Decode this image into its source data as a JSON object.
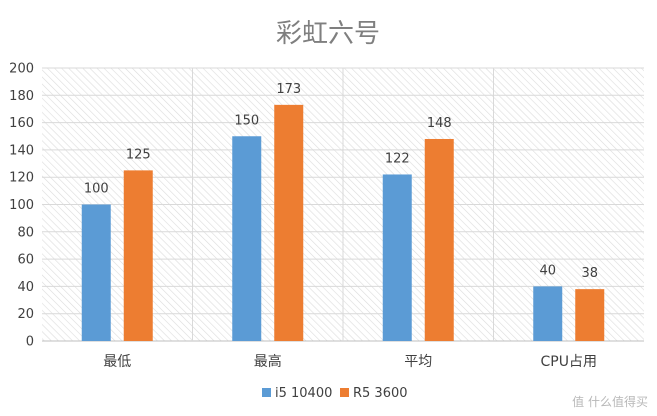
{
  "watermark": "值 什么值得买",
  "chart_data": {
    "type": "bar",
    "title": "彩虹六号",
    "categories": [
      "最低",
      "最高",
      "平均",
      "CPU占用"
    ],
    "series": [
      {
        "name": "i5 10400",
        "color": "#5b9bd5",
        "values": [
          100,
          150,
          122,
          40
        ]
      },
      {
        "name": "R5 3600",
        "color": "#ed7d31",
        "values": [
          125,
          173,
          148,
          38
        ]
      }
    ],
    "xlabel": "",
    "ylabel": "",
    "ylim": [
      0,
      200
    ],
    "yticks": [
      0,
      20,
      40,
      60,
      80,
      100,
      120,
      140,
      160,
      180,
      200
    ],
    "grid": true,
    "legend_position": "bottom"
  }
}
